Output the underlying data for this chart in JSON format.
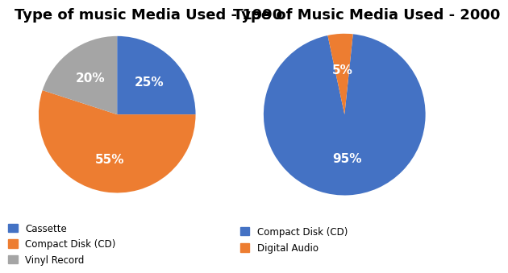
{
  "chart1_title": "Type of music Media Used - 1990",
  "chart2_title": "Type of Music Media Used - 2000",
  "chart1_labels": [
    "Cassette",
    "Compact Disk (CD)",
    "Vinyl Record"
  ],
  "chart1_values": [
    25,
    55,
    20
  ],
  "chart1_colors": [
    "#4472C4",
    "#ED7D31",
    "#A5A5A5"
  ],
  "chart1_startangle": 90,
  "chart2_labels": [
    "Compact Disk (CD)",
    "Digital Audio"
  ],
  "chart2_values": [
    95,
    5
  ],
  "chart2_colors": [
    "#4472C4",
    "#ED7D31"
  ],
  "chart2_startangle": 84,
  "legend1_labels": [
    "Cassette",
    "Compact Disk (CD)",
    "Vinyl Record"
  ],
  "legend2_labels": [
    "Compact Disk (CD)",
    "Digital Audio"
  ],
  "label_color": "white",
  "label_fontsize": 11,
  "title_fontsize": 13,
  "background_color": "#FFFFFF"
}
